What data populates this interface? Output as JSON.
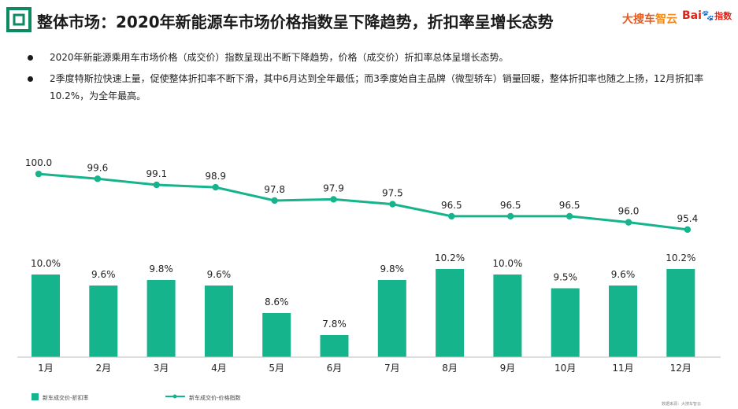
{
  "header": {
    "title": "整体市场：2020年新能源车市场价格指数呈下降趋势，折扣率呈增长态势",
    "logo_sohu": "大搜车",
    "logo_sohu_zy": "智云",
    "logo_baidu": "Bai",
    "logo_baidu_paw": "du",
    "logo_baidu_zs": "指数"
  },
  "bullets": [
    "2020年新能源乘用车市场价格（成交价）指数呈现出不断下降趋势，价格（成交价）折扣率总体呈增长态势。",
    "2季度特斯拉快速上量，促使整体折扣率不断下滑，其中6月达到全年最低；而3季度始自主品牌（微型轿车）销量回暖，整体折扣率也随之上扬，12月折扣率10.2%，为全年最高。"
  ],
  "colors": {
    "accent": "#16b48c",
    "title_icon": "#0e8a63"
  },
  "chart_data": {
    "type": "bar",
    "categories": [
      "1月",
      "2月",
      "3月",
      "4月",
      "5月",
      "6月",
      "7月",
      "8月",
      "9月",
      "10月",
      "11月",
      "12月"
    ],
    "series": [
      {
        "name": "新车成交价-折扣率",
        "type": "bar",
        "values": [
          10.0,
          9.6,
          9.8,
          9.6,
          8.6,
          7.8,
          9.8,
          10.2,
          10.0,
          9.5,
          9.6,
          10.2
        ],
        "labels": [
          "10.0%",
          "9.6%",
          "9.8%",
          "9.6%",
          "8.6%",
          "7.8%",
          "9.8%",
          "10.2%",
          "10.0%",
          "9.5%",
          "9.6%",
          "10.2%"
        ]
      },
      {
        "name": "新车成交价-价格指数",
        "type": "line",
        "values": [
          100.0,
          99.6,
          99.1,
          98.9,
          97.8,
          97.9,
          97.5,
          96.5,
          96.5,
          96.5,
          96.0,
          95.4
        ],
        "labels": [
          "100.0",
          "99.6",
          "99.1",
          "98.9",
          "97.8",
          "97.9",
          "97.5",
          "96.5",
          "96.5",
          "96.5",
          "96.0",
          "95.4"
        ]
      }
    ],
    "bar_ylim": [
      7.0,
      10.4
    ],
    "line_ylim": [
      95.0,
      100.4
    ],
    "legend_position": "bottom-left",
    "grid": false,
    "source_note": "数据来源：大搜车智云"
  }
}
